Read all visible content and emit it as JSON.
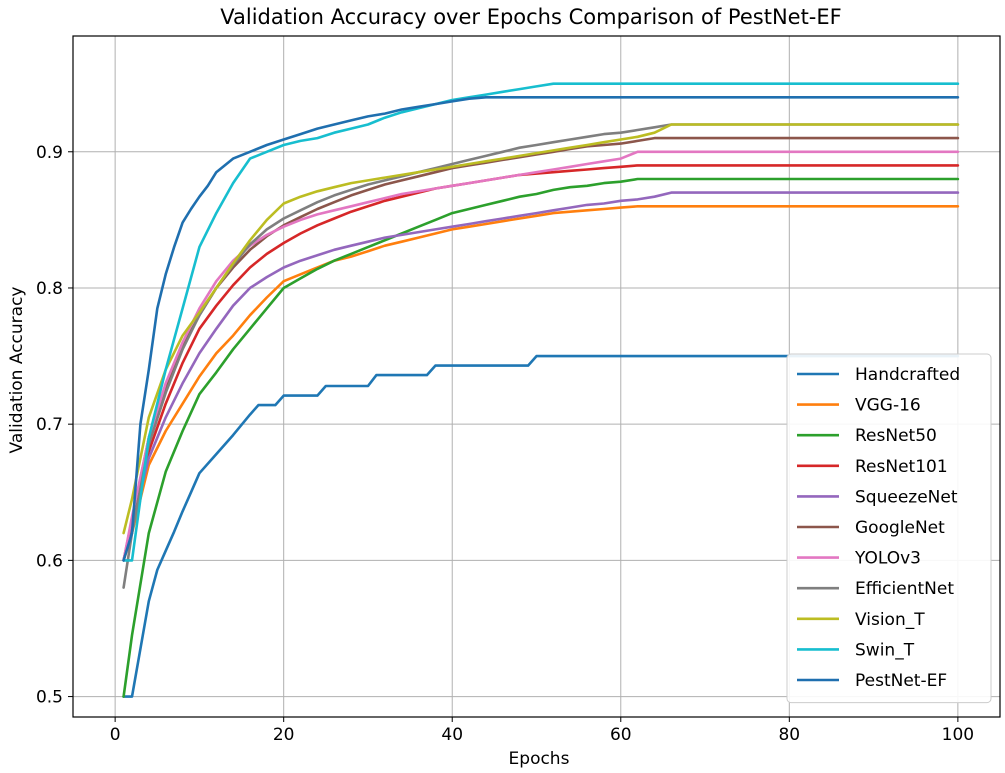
{
  "chart_data": {
    "type": "line",
    "title": "Validation Accuracy over Epochs Comparison of PestNet-EF",
    "xlabel": "Epochs",
    "ylabel": "Validation Accuracy",
    "xlim": [
      -5,
      105
    ],
    "ylim": [
      0.485,
      0.985
    ],
    "xticks": [
      0,
      20,
      40,
      60,
      80,
      100
    ],
    "yticks": [
      0.5,
      0.6,
      0.7,
      0.8,
      0.9
    ],
    "xtick_labels": [
      "0",
      "20",
      "40",
      "60",
      "80",
      "100"
    ],
    "ytick_labels": [
      "0.5",
      "0.6",
      "0.7",
      "0.8",
      "0.9"
    ],
    "grid": true,
    "legend_position": "lower-right",
    "series": [
      {
        "name": "Handcrafted",
        "color": "#1f77b4",
        "x": [
          1,
          2,
          4,
          5,
          6,
          7,
          8,
          9,
          10,
          12,
          14,
          16,
          17,
          19,
          20,
          24,
          25,
          29,
          30,
          31,
          32,
          37,
          38,
          46,
          47,
          49,
          50,
          100
        ],
        "y": [
          0.5,
          0.5,
          0.57,
          0.593,
          0.607,
          0.621,
          0.636,
          0.65,
          0.664,
          0.678,
          0.692,
          0.707,
          0.714,
          0.714,
          0.721,
          0.721,
          0.728,
          0.728,
          0.728,
          0.736,
          0.736,
          0.736,
          0.743,
          0.743,
          0.743,
          0.743,
          0.75,
          0.75
        ]
      },
      {
        "name": "VGG-16",
        "color": "#ff7f0e",
        "x": [
          1,
          2,
          4,
          6,
          8,
          10,
          12,
          14,
          16,
          18,
          20,
          22,
          24,
          26,
          28,
          30,
          32,
          34,
          36,
          38,
          40,
          42,
          44,
          46,
          48,
          50,
          52,
          54,
          56,
          58,
          60,
          62,
          64,
          100
        ],
        "y": [
          0.6,
          0.62,
          0.67,
          0.695,
          0.715,
          0.735,
          0.752,
          0.765,
          0.78,
          0.793,
          0.805,
          0.81,
          0.815,
          0.82,
          0.823,
          0.827,
          0.831,
          0.834,
          0.837,
          0.84,
          0.843,
          0.845,
          0.847,
          0.849,
          0.851,
          0.853,
          0.855,
          0.856,
          0.857,
          0.858,
          0.859,
          0.86,
          0.86,
          0.86
        ]
      },
      {
        "name": "ResNet50",
        "color": "#2ca02c",
        "x": [
          1,
          2,
          4,
          6,
          8,
          10,
          12,
          14,
          16,
          18,
          20,
          22,
          24,
          26,
          28,
          30,
          32,
          34,
          36,
          38,
          40,
          42,
          44,
          46,
          48,
          50,
          52,
          54,
          56,
          58,
          60,
          62,
          100
        ],
        "y": [
          0.5,
          0.545,
          0.62,
          0.665,
          0.695,
          0.722,
          0.738,
          0.755,
          0.77,
          0.785,
          0.8,
          0.807,
          0.814,
          0.82,
          0.825,
          0.83,
          0.835,
          0.84,
          0.845,
          0.85,
          0.855,
          0.858,
          0.861,
          0.864,
          0.867,
          0.869,
          0.872,
          0.874,
          0.875,
          0.877,
          0.878,
          0.88,
          0.88
        ]
      },
      {
        "name": "ResNet101",
        "color": "#d62728",
        "x": [
          1,
          2,
          4,
          6,
          8,
          10,
          12,
          14,
          16,
          18,
          20,
          22,
          24,
          26,
          28,
          30,
          32,
          34,
          36,
          38,
          40,
          42,
          44,
          46,
          48,
          50,
          52,
          54,
          56,
          58,
          60,
          62,
          100
        ],
        "y": [
          0.6,
          0.625,
          0.68,
          0.715,
          0.745,
          0.77,
          0.787,
          0.802,
          0.815,
          0.825,
          0.833,
          0.84,
          0.846,
          0.851,
          0.856,
          0.86,
          0.864,
          0.867,
          0.87,
          0.873,
          0.875,
          0.877,
          0.879,
          0.881,
          0.883,
          0.884,
          0.885,
          0.886,
          0.887,
          0.888,
          0.889,
          0.89,
          0.89
        ]
      },
      {
        "name": "SqueezeNet",
        "color": "#9467bd",
        "x": [
          1,
          2,
          4,
          6,
          8,
          10,
          12,
          14,
          16,
          18,
          20,
          22,
          24,
          26,
          28,
          30,
          32,
          34,
          36,
          38,
          40,
          42,
          44,
          46,
          48,
          50,
          52,
          54,
          56,
          58,
          60,
          62,
          64,
          66,
          100
        ],
        "y": [
          0.6,
          0.625,
          0.675,
          0.705,
          0.73,
          0.752,
          0.77,
          0.787,
          0.8,
          0.808,
          0.815,
          0.82,
          0.824,
          0.828,
          0.831,
          0.834,
          0.837,
          0.839,
          0.841,
          0.843,
          0.845,
          0.847,
          0.849,
          0.851,
          0.853,
          0.855,
          0.857,
          0.859,
          0.861,
          0.862,
          0.864,
          0.865,
          0.867,
          0.87,
          0.87
        ]
      },
      {
        "name": "GoogleNet",
        "color": "#8c564b",
        "x": [
          1,
          2,
          4,
          6,
          8,
          10,
          12,
          14,
          16,
          18,
          20,
          22,
          24,
          26,
          28,
          30,
          32,
          34,
          36,
          38,
          40,
          42,
          44,
          46,
          48,
          50,
          52,
          54,
          56,
          58,
          60,
          62,
          64,
          100
        ],
        "y": [
          0.6,
          0.63,
          0.69,
          0.728,
          0.757,
          0.78,
          0.8,
          0.815,
          0.828,
          0.838,
          0.846,
          0.852,
          0.858,
          0.863,
          0.868,
          0.872,
          0.876,
          0.879,
          0.882,
          0.885,
          0.888,
          0.89,
          0.892,
          0.894,
          0.896,
          0.898,
          0.9,
          0.902,
          0.904,
          0.905,
          0.906,
          0.908,
          0.91,
          0.91
        ]
      },
      {
        "name": "YOLOv3",
        "color": "#e377c2",
        "x": [
          1,
          2,
          4,
          6,
          8,
          10,
          12,
          14,
          16,
          18,
          20,
          22,
          24,
          26,
          28,
          30,
          32,
          34,
          36,
          38,
          40,
          42,
          44,
          46,
          48,
          50,
          52,
          54,
          56,
          58,
          60,
          62,
          100
        ],
        "y": [
          0.6,
          0.632,
          0.69,
          0.73,
          0.76,
          0.785,
          0.805,
          0.82,
          0.831,
          0.839,
          0.845,
          0.85,
          0.854,
          0.857,
          0.86,
          0.863,
          0.866,
          0.869,
          0.871,
          0.873,
          0.875,
          0.877,
          0.879,
          0.881,
          0.883,
          0.885,
          0.887,
          0.889,
          0.891,
          0.893,
          0.895,
          0.9,
          0.9
        ]
      },
      {
        "name": "EfficientNet",
        "color": "#7f7f7f",
        "x": [
          1,
          2,
          4,
          6,
          8,
          10,
          12,
          14,
          16,
          18,
          20,
          22,
          24,
          26,
          28,
          30,
          32,
          34,
          36,
          38,
          40,
          42,
          44,
          46,
          48,
          50,
          52,
          54,
          56,
          58,
          60,
          62,
          64,
          66,
          100
        ],
        "y": [
          0.58,
          0.62,
          0.685,
          0.723,
          0.755,
          0.78,
          0.8,
          0.817,
          0.832,
          0.843,
          0.851,
          0.857,
          0.863,
          0.868,
          0.872,
          0.876,
          0.879,
          0.882,
          0.885,
          0.888,
          0.891,
          0.894,
          0.897,
          0.9,
          0.903,
          0.905,
          0.907,
          0.909,
          0.911,
          0.913,
          0.914,
          0.916,
          0.918,
          0.92,
          0.92
        ]
      },
      {
        "name": "Vision_T",
        "color": "#bcbd22",
        "x": [
          1,
          2,
          4,
          6,
          8,
          10,
          12,
          14,
          16,
          18,
          20,
          22,
          24,
          26,
          28,
          30,
          32,
          34,
          36,
          38,
          40,
          42,
          44,
          46,
          48,
          50,
          52,
          54,
          56,
          58,
          60,
          62,
          64,
          66,
          100
        ],
        "y": [
          0.62,
          0.645,
          0.705,
          0.74,
          0.765,
          0.782,
          0.8,
          0.818,
          0.835,
          0.85,
          0.862,
          0.867,
          0.871,
          0.874,
          0.877,
          0.879,
          0.881,
          0.883,
          0.885,
          0.887,
          0.889,
          0.891,
          0.893,
          0.895,
          0.897,
          0.899,
          0.901,
          0.903,
          0.905,
          0.907,
          0.909,
          0.911,
          0.914,
          0.92,
          0.92
        ]
      },
      {
        "name": "Swin_T",
        "color": "#17becf",
        "x": [
          1,
          2,
          4,
          6,
          8,
          10,
          12,
          14,
          16,
          18,
          20,
          22,
          24,
          26,
          28,
          30,
          32,
          34,
          36,
          38,
          40,
          42,
          44,
          46,
          48,
          50,
          52,
          100
        ],
        "y": [
          0.6,
          0.6,
          0.69,
          0.74,
          0.785,
          0.83,
          0.855,
          0.877,
          0.895,
          0.9,
          0.905,
          0.908,
          0.91,
          0.914,
          0.917,
          0.92,
          0.925,
          0.929,
          0.932,
          0.935,
          0.938,
          0.94,
          0.942,
          0.944,
          0.946,
          0.948,
          0.95,
          0.95
        ]
      },
      {
        "name": "PestNet-EF",
        "color": "#1f6faf",
        "x": [
          1,
          2,
          3,
          4,
          5,
          6,
          7,
          8,
          9,
          10,
          11,
          12,
          14,
          16,
          18,
          20,
          22,
          24,
          26,
          28,
          30,
          32,
          34,
          36,
          38,
          40,
          42,
          44,
          100
        ],
        "y": [
          0.6,
          0.62,
          0.7,
          0.74,
          0.785,
          0.81,
          0.83,
          0.848,
          0.858,
          0.867,
          0.875,
          0.885,
          0.895,
          0.9,
          0.905,
          0.909,
          0.913,
          0.917,
          0.92,
          0.923,
          0.926,
          0.928,
          0.931,
          0.933,
          0.935,
          0.937,
          0.939,
          0.94,
          0.94
        ]
      }
    ]
  }
}
